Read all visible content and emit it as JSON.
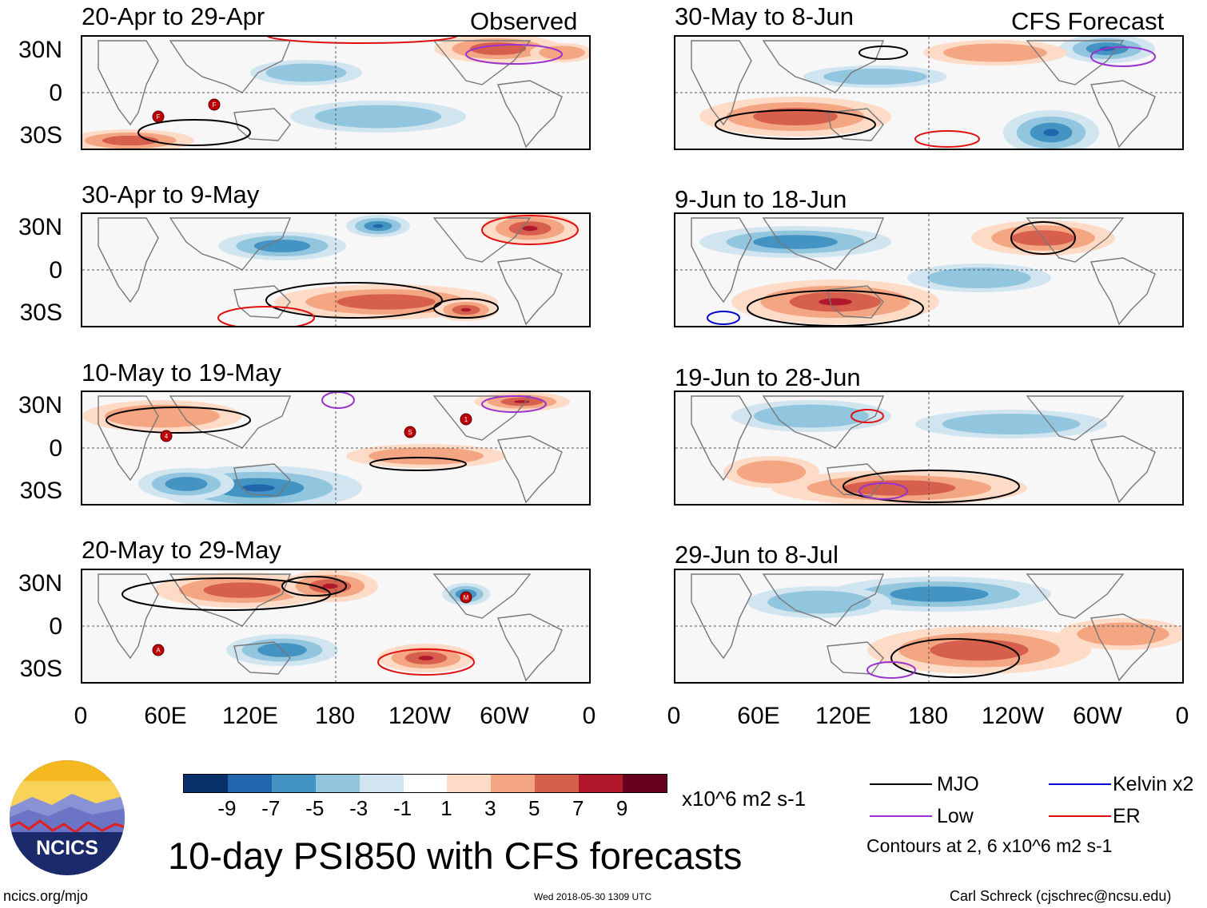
{
  "panels": [
    {
      "id": "obs1",
      "col": "left",
      "row": 0,
      "title": "20-Apr to 29-Apr",
      "corner": "Observed",
      "storms": [
        "F",
        "F"
      ]
    },
    {
      "id": "obs2",
      "col": "left",
      "row": 1,
      "title": "30-Apr to 9-May",
      "corner": "",
      "storms": []
    },
    {
      "id": "obs3",
      "col": "left",
      "row": 2,
      "title": "10-May to 19-May",
      "corner": "",
      "storms": [
        "S",
        "4",
        "1"
      ]
    },
    {
      "id": "obs4",
      "col": "left",
      "row": 3,
      "title": "20-May to 29-May",
      "corner": "",
      "storms": [
        "M",
        "A"
      ]
    },
    {
      "id": "fc1",
      "col": "right",
      "row": 0,
      "title": "30-May to 8-Jun",
      "corner": "CFS Forecast",
      "storms": []
    },
    {
      "id": "fc2",
      "col": "right",
      "row": 1,
      "title": "9-Jun to 18-Jun",
      "corner": "",
      "storms": []
    },
    {
      "id": "fc3",
      "col": "right",
      "row": 2,
      "title": "19-Jun to 28-Jun",
      "corner": "",
      "storms": []
    },
    {
      "id": "fc4",
      "col": "right",
      "row": 3,
      "title": "29-Jun to 8-Jul",
      "corner": "",
      "storms": []
    }
  ],
  "lat_labels": [
    "30N",
    "0",
    "30S"
  ],
  "lon_labels": [
    "0",
    "60E",
    "120E",
    "180",
    "120W",
    "60W",
    "0"
  ],
  "colorbar": {
    "colors": [
      "#08306b",
      "#2166ac",
      "#4393c3",
      "#92c5de",
      "#d1e5f0",
      "#ffffff",
      "#fddbc7",
      "#f4a582",
      "#d6604d",
      "#b2182b",
      "#67001f"
    ],
    "labels": [
      "-9",
      "-7",
      "-5",
      "-3",
      "-1",
      "1",
      "3",
      "5",
      "7",
      "9"
    ],
    "units": "x10^6 m2 s-1"
  },
  "legend": {
    "items": [
      {
        "label": "MJO",
        "color": "#000000"
      },
      {
        "label": "Kelvin x2",
        "color": "#0000cc"
      },
      {
        "label": "Low",
        "color": "#9a32cd"
      },
      {
        "label": "ER",
        "color": "#e01010"
      }
    ],
    "note": "Contours at 2, 6 x10^6 m2 s-1"
  },
  "logo": {
    "text": "NCICS"
  },
  "main_title": "10-day PSI850 with CFS forecasts",
  "footer": {
    "left": "ncics.org/mjo",
    "center": "Wed 2018-05-30 1309 UTC",
    "right": "Carl Schreck (cjschrec@ncsu.edu)"
  }
}
